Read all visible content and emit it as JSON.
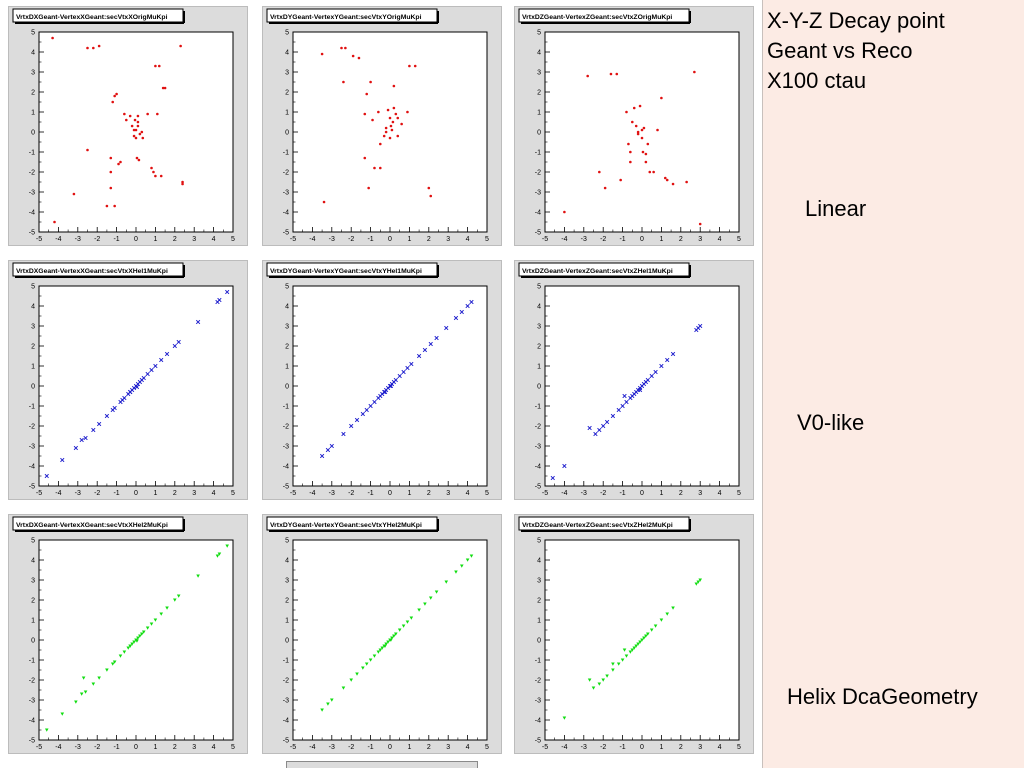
{
  "side": {
    "title_lines": [
      "X-Y-Z Decay point",
      "Geant vs Reco",
      "X100 ctau"
    ],
    "row_labels": [
      "Linear",
      "V0-like",
      "Helix DcaGeometry"
    ]
  },
  "chart_data": [
    {
      "type": "scatter",
      "title": "VrtxDXGeant-VertexXGeant:secVtxXOrigMuKpi",
      "color": "#e01010",
      "marker": "dot",
      "xlim": [
        -5,
        5
      ],
      "ylim": [
        -5,
        5
      ],
      "xticks": [
        -5,
        -4,
        -3,
        -2,
        -1,
        0,
        1,
        2,
        3,
        4,
        5
      ],
      "yticks": [
        -5,
        -4,
        -3,
        -2,
        -1,
        0,
        1,
        2,
        3,
        4,
        5
      ],
      "x": [
        -4.3,
        -2.5,
        -2.2,
        -1.9,
        -1.3,
        -1.2,
        -1.1,
        -1.0,
        -0.9,
        -0.8,
        -0.6,
        -0.5,
        -0.3,
        -0.2,
        -0.1,
        -0.1,
        -0.05,
        0,
        0,
        0.05,
        0.1,
        0.1,
        0.15,
        0.2,
        0.3,
        0.35,
        0.6,
        0.8,
        0.9,
        1.0,
        1.0,
        1.1,
        1.2,
        1.3,
        1.4,
        1.5,
        2.3,
        2.4,
        2.4,
        -1.3,
        -3.2,
        -4.2,
        -1.5,
        -1.3,
        -1.1,
        0.1,
        -2.5
      ],
      "y": [
        4.7,
        4.2,
        4.2,
        4.3,
        -2.0,
        1.5,
        1.8,
        1.9,
        -1.6,
        -1.5,
        0.9,
        0.6,
        0.8,
        0.3,
        0.1,
        -0.2,
        0.6,
        0.1,
        -0.3,
        -1.3,
        0.8,
        0.3,
        -1.4,
        -0.1,
        0.0,
        -0.3,
        0.9,
        -1.8,
        -2.0,
        3.3,
        -2.2,
        0.9,
        3.3,
        -2.2,
        2.2,
        2.2,
        4.3,
        -2.5,
        -2.6,
        -1.3,
        -3.1,
        -4.5,
        -3.7,
        -2.8,
        -3.7,
        0.5,
        -0.9
      ]
    },
    {
      "type": "scatter",
      "title": "VrtxDYGeant-VertexYGeant:secVtxYOrigMuKpi",
      "color": "#e01010",
      "marker": "dot",
      "xlim": [
        -5,
        5
      ],
      "ylim": [
        -5,
        5
      ],
      "xticks": [
        -5,
        -4,
        -3,
        -2,
        -1,
        0,
        1,
        2,
        3,
        4,
        5
      ],
      "yticks": [
        -5,
        -4,
        -3,
        -2,
        -1,
        0,
        1,
        2,
        3,
        4,
        5
      ],
      "x": [
        -3.5,
        -2.5,
        -2.3,
        -1.9,
        -1.6,
        -1.3,
        -1.1,
        -1.0,
        -0.9,
        -0.8,
        -0.6,
        -0.5,
        -0.3,
        -0.2,
        -0.1,
        0,
        0,
        0.05,
        0.1,
        0.15,
        0.2,
        0.3,
        0.4,
        0.6,
        0.9,
        1.0,
        1.3,
        2.0,
        2.1,
        -1.2,
        -0.5,
        -0.2,
        0.2,
        0.4,
        -1.3,
        -2.4,
        -3.4
      ],
      "y": [
        3.9,
        4.2,
        4.2,
        3.8,
        3.7,
        -1.3,
        -2.8,
        2.5,
        0.6,
        -1.8,
        1.0,
        -0.6,
        -0.2,
        0.0,
        1.1,
        0.7,
        -0.3,
        0.3,
        0.1,
        0.5,
        1.2,
        0.9,
        -0.2,
        0.4,
        1.0,
        3.3,
        3.3,
        -2.8,
        -3.2,
        1.9,
        -1.8,
        0.2,
        2.3,
        0.7,
        0.9,
        2.5,
        -3.5
      ]
    },
    {
      "type": "scatter",
      "title": "VrtxDZGeant-VertexZGeant:secVtxZOrigMuKpi",
      "color": "#e01010",
      "marker": "dot",
      "xlim": [
        -5,
        5
      ],
      "ylim": [
        -5,
        5
      ],
      "xticks": [
        -5,
        -4,
        -3,
        -2,
        -1,
        0,
        1,
        2,
        3,
        4,
        5
      ],
      "yticks": [
        -5,
        -4,
        -3,
        -2,
        -1,
        0,
        1,
        2,
        3,
        4,
        5
      ],
      "x": [
        -4.0,
        -2.8,
        -2.2,
        -1.3,
        -1.1,
        -0.8,
        -0.7,
        -0.6,
        -0.5,
        -0.4,
        -0.3,
        -0.2,
        -0.1,
        0,
        0,
        0.05,
        0.1,
        0.2,
        0.3,
        0.4,
        0.6,
        0.8,
        1.2,
        1.3,
        1.6,
        2.3,
        2.7,
        3.0,
        -1.9,
        -1.6,
        -0.6,
        -0.2,
        0.2,
        1.0
      ],
      "y": [
        -4.0,
        2.8,
        -2.0,
        2.9,
        -2.4,
        1.0,
        -0.6,
        -1.5,
        0.5,
        1.2,
        0.3,
        -0.1,
        1.3,
        0.1,
        -0.3,
        -1.0,
        0.2,
        -1.1,
        -0.6,
        -2.0,
        -2.0,
        0.1,
        -2.3,
        -2.4,
        -2.6,
        -2.5,
        3.0,
        -4.6,
        -2.8,
        2.9,
        -1.0,
        0.0,
        -1.5,
        1.7
      ]
    },
    {
      "type": "scatter",
      "title": "VrtxDXGeant-VertexXGeant:secVtxXHel1MuKpi",
      "color": "#1a1acc",
      "marker": "cross",
      "xlim": [
        -5,
        5
      ],
      "ylim": [
        -5,
        5
      ],
      "xticks": [
        -5,
        -4,
        -3,
        -2,
        -1,
        0,
        1,
        2,
        3,
        4,
        5
      ],
      "yticks": [
        -5,
        -4,
        -3,
        -2,
        -1,
        0,
        1,
        2,
        3,
        4,
        5
      ],
      "x": [
        -4.6,
        -3.8,
        -3.1,
        -2.8,
        -2.6,
        -2.2,
        -1.9,
        -1.5,
        -1.2,
        -1.1,
        -0.8,
        -0.6,
        -0.4,
        -0.3,
        -0.2,
        -0.1,
        0,
        0.1,
        0.2,
        0.3,
        0.4,
        0.6,
        0.8,
        1.0,
        1.3,
        1.6,
        2.0,
        2.2,
        3.2,
        4.2,
        4.3,
        4.7,
        -0.7,
        -0.3,
        0.05
      ],
      "y": [
        -4.5,
        -3.7,
        -3.1,
        -2.7,
        -2.6,
        -2.2,
        -1.9,
        -1.5,
        -1.2,
        -1.1,
        -0.8,
        -0.6,
        -0.4,
        -0.3,
        -0.2,
        -0.1,
        0,
        0.1,
        0.2,
        0.3,
        0.4,
        0.6,
        0.8,
        1.0,
        1.3,
        1.6,
        2.0,
        2.2,
        3.2,
        4.2,
        4.3,
        4.7,
        -0.7,
        -0.3,
        -0.05
      ]
    },
    {
      "type": "scatter",
      "title": "VrtxDYGeant-VertexYGeant:secVtxYHel1MuKpi",
      "color": "#1a1acc",
      "marker": "cross",
      "xlim": [
        -5,
        5
      ],
      "ylim": [
        -5,
        5
      ],
      "xticks": [
        -5,
        -4,
        -3,
        -2,
        -1,
        0,
        1,
        2,
        3,
        4,
        5
      ],
      "yticks": [
        -5,
        -4,
        -3,
        -2,
        -1,
        0,
        1,
        2,
        3,
        4,
        5
      ],
      "x": [
        -3.5,
        -3.2,
        -3.0,
        -2.4,
        -2.0,
        -1.7,
        -1.4,
        -1.2,
        -1.0,
        -0.8,
        -0.6,
        -0.5,
        -0.4,
        -0.3,
        -0.2,
        -0.1,
        0,
        0.1,
        0.2,
        0.3,
        0.5,
        0.7,
        0.9,
        1.1,
        1.5,
        1.8,
        2.1,
        2.4,
        2.9,
        3.4,
        3.7,
        4.0,
        4.2,
        -0.25,
        0.05
      ],
      "y": [
        -3.5,
        -3.2,
        -3.0,
        -2.4,
        -2.0,
        -1.7,
        -1.4,
        -1.2,
        -1.0,
        -0.8,
        -0.6,
        -0.5,
        -0.4,
        -0.3,
        -0.2,
        -0.1,
        0,
        0.1,
        0.2,
        0.3,
        0.5,
        0.7,
        0.9,
        1.1,
        1.5,
        1.8,
        2.1,
        2.4,
        2.9,
        3.4,
        3.7,
        4.0,
        4.2,
        -0.3,
        0.0
      ]
    },
    {
      "type": "scatter",
      "title": "VrtxDZGeant-VertexZGeant:secVtxZHel1MuKpi",
      "color": "#1a1acc",
      "marker": "cross",
      "xlim": [
        -5,
        5
      ],
      "ylim": [
        -5,
        5
      ],
      "xticks": [
        -5,
        -4,
        -3,
        -2,
        -1,
        0,
        1,
        2,
        3,
        4,
        5
      ],
      "yticks": [
        -5,
        -4,
        -3,
        -2,
        -1,
        0,
        1,
        2,
        3,
        4,
        5
      ],
      "x": [
        -4.6,
        -4.0,
        -2.7,
        -2.4,
        -2.2,
        -2.0,
        -1.8,
        -1.5,
        -1.2,
        -1.0,
        -0.8,
        -0.6,
        -0.5,
        -0.4,
        -0.3,
        -0.2,
        -0.1,
        0,
        0.1,
        0.2,
        0.3,
        0.5,
        0.7,
        1.0,
        1.3,
        1.6,
        2.8,
        2.9,
        3.0,
        -0.9,
        -0.1
      ],
      "y": [
        -4.6,
        -4.0,
        -2.1,
        -2.4,
        -2.2,
        -2.0,
        -1.8,
        -1.5,
        -1.2,
        -1.0,
        -0.8,
        -0.6,
        -0.5,
        -0.4,
        -0.3,
        -0.2,
        -0.1,
        0,
        0.1,
        0.2,
        0.3,
        0.5,
        0.7,
        1.0,
        1.3,
        1.6,
        2.8,
        2.9,
        3.0,
        -0.5,
        -0.2
      ]
    },
    {
      "type": "scatter",
      "title": "VrtxDXGeant-VertexXGeant:secVtxXHel2MuKpi",
      "color": "#11dd11",
      "marker": "tri",
      "xlim": [
        -5,
        5
      ],
      "ylim": [
        -5,
        5
      ],
      "xticks": [
        -5,
        -4,
        -3,
        -2,
        -1,
        0,
        1,
        2,
        3,
        4,
        5
      ],
      "yticks": [
        -5,
        -4,
        -3,
        -2,
        -1,
        0,
        1,
        2,
        3,
        4,
        5
      ],
      "x": [
        -4.6,
        -3.8,
        -3.1,
        -2.8,
        -2.6,
        -2.2,
        -1.9,
        -1.5,
        -1.2,
        -1.1,
        -0.8,
        -0.6,
        -0.4,
        -0.3,
        -0.2,
        -0.1,
        0,
        0.1,
        0.2,
        0.3,
        0.4,
        0.6,
        0.8,
        1.0,
        1.3,
        1.6,
        2.0,
        2.2,
        3.2,
        4.2,
        4.3,
        4.7,
        -2.7,
        -0.3,
        0.05
      ],
      "y": [
        -4.5,
        -3.7,
        -3.1,
        -2.7,
        -2.6,
        -2.2,
        -1.9,
        -1.5,
        -1.2,
        -1.1,
        -0.8,
        -0.6,
        -0.4,
        -0.3,
        -0.2,
        -0.1,
        0,
        0.1,
        0.2,
        0.3,
        0.4,
        0.6,
        0.8,
        1.0,
        1.3,
        1.6,
        2.0,
        2.2,
        3.2,
        4.2,
        4.3,
        4.7,
        -1.9,
        -0.3,
        -0.05
      ]
    },
    {
      "type": "scatter",
      "title": "VrtxDYGeant-VertexYGeant:secVtxYHel2MuKpi",
      "color": "#11dd11",
      "marker": "tri",
      "xlim": [
        -5,
        5
      ],
      "ylim": [
        -5,
        5
      ],
      "xticks": [
        -5,
        -4,
        -3,
        -2,
        -1,
        0,
        1,
        2,
        3,
        4,
        5
      ],
      "yticks": [
        -5,
        -4,
        -3,
        -2,
        -1,
        0,
        1,
        2,
        3,
        4,
        5
      ],
      "x": [
        -3.5,
        -3.2,
        -3.0,
        -2.4,
        -2.0,
        -1.7,
        -1.4,
        -1.2,
        -1.0,
        -0.8,
        -0.6,
        -0.5,
        -0.4,
        -0.3,
        -0.2,
        -0.1,
        0,
        0.1,
        0.2,
        0.3,
        0.5,
        0.7,
        0.9,
        1.1,
        1.5,
        1.8,
        2.1,
        2.4,
        2.9,
        3.4,
        3.7,
        4.0,
        4.2,
        -0.25,
        0.05
      ],
      "y": [
        -3.5,
        -3.2,
        -3.0,
        -2.4,
        -2.0,
        -1.7,
        -1.4,
        -1.2,
        -1.0,
        -0.8,
        -0.6,
        -0.5,
        -0.4,
        -0.3,
        -0.2,
        -0.1,
        0,
        0.1,
        0.2,
        0.3,
        0.5,
        0.7,
        0.9,
        1.1,
        1.5,
        1.8,
        2.1,
        2.4,
        2.9,
        3.4,
        3.7,
        4.0,
        4.2,
        -0.3,
        0.0
      ]
    },
    {
      "type": "scatter",
      "title": "VrtxDZGeant-VertexZGeant:secVtxZHel2MuKpi",
      "color": "#11dd11",
      "marker": "tri",
      "xlim": [
        -5,
        5
      ],
      "ylim": [
        -5,
        5
      ],
      "xticks": [
        -5,
        -4,
        -3,
        -2,
        -1,
        0,
        1,
        2,
        3,
        4,
        5
      ],
      "yticks": [
        -5,
        -4,
        -3,
        -2,
        -1,
        0,
        1,
        2,
        3,
        4,
        5
      ],
      "x": [
        -4.0,
        -2.7,
        -2.5,
        -2.2,
        -2.0,
        -1.8,
        -1.5,
        -1.2,
        -1.0,
        -0.8,
        -0.6,
        -0.5,
        -0.4,
        -0.3,
        -0.2,
        -0.1,
        0,
        0.1,
        0.2,
        0.3,
        0.5,
        0.7,
        1.0,
        1.3,
        1.6,
        2.8,
        2.9,
        3.0,
        -0.9,
        -1.5
      ],
      "y": [
        -3.9,
        -2.0,
        -2.4,
        -2.2,
        -2.0,
        -1.8,
        -1.5,
        -1.2,
        -1.0,
        -0.8,
        -0.6,
        -0.5,
        -0.4,
        -0.3,
        -0.2,
        -0.1,
        0,
        0.1,
        0.2,
        0.3,
        0.5,
        0.7,
        1.0,
        1.3,
        1.6,
        2.8,
        2.9,
        3.0,
        -0.5,
        -1.2
      ]
    }
  ]
}
